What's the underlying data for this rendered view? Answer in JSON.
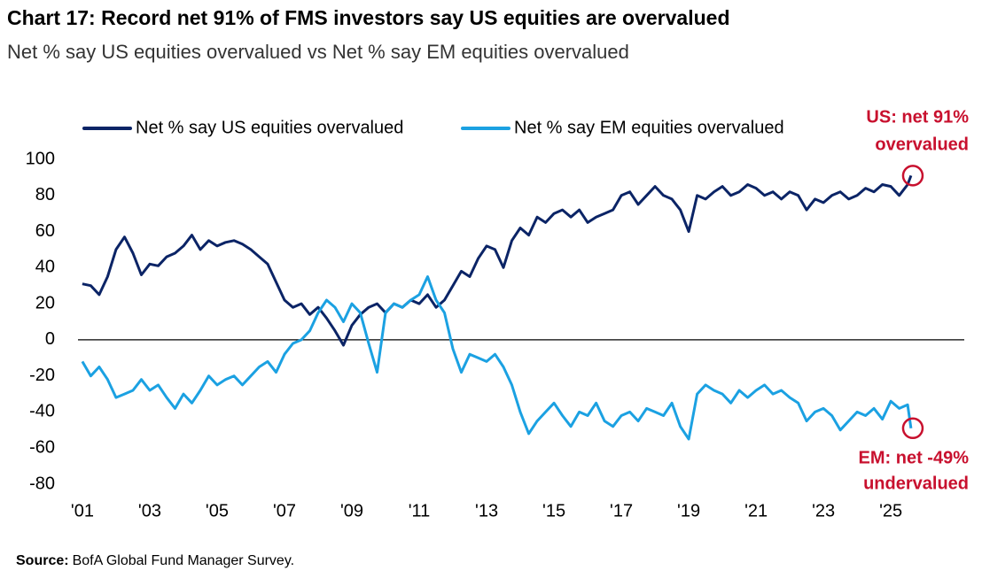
{
  "chart_data": {
    "type": "line",
    "title": "Chart 17: Record net 91% of FMS investors say US equities are overvalued",
    "subtitle": "Net % say US equities overvalued vs Net % say EM equities overvalued",
    "x": [
      2001,
      2001.25,
      2001.5,
      2001.75,
      2002,
      2002.25,
      2002.5,
      2002.75,
      2003,
      2003.25,
      2003.5,
      2003.75,
      2004,
      2004.25,
      2004.5,
      2004.75,
      2005,
      2005.25,
      2005.5,
      2005.75,
      2006,
      2006.25,
      2006.5,
      2006.75,
      2007,
      2007.25,
      2007.5,
      2007.75,
      2008,
      2008.25,
      2008.5,
      2008.75,
      2009,
      2009.25,
      2009.5,
      2009.75,
      2010,
      2010.25,
      2010.5,
      2010.75,
      2011,
      2011.25,
      2011.5,
      2011.75,
      2012,
      2012.25,
      2012.5,
      2012.75,
      2013,
      2013.25,
      2013.5,
      2013.75,
      2014,
      2014.25,
      2014.5,
      2014.75,
      2015,
      2015.25,
      2015.5,
      2015.75,
      2016,
      2016.25,
      2016.5,
      2016.75,
      2017,
      2017.25,
      2017.5,
      2017.75,
      2018,
      2018.25,
      2018.5,
      2018.75,
      2019,
      2019.25,
      2019.5,
      2019.75,
      2020,
      2020.25,
      2020.5,
      2020.75,
      2021,
      2021.25,
      2021.5,
      2021.75,
      2022,
      2022.25,
      2022.5,
      2022.75,
      2023,
      2023.25,
      2023.5,
      2023.75,
      2024,
      2024.25,
      2024.5,
      2024.75,
      2025,
      2025.25,
      2025.5,
      2025.6
    ],
    "series": [
      {
        "name": "Net % say US equities overvalued",
        "color": "#0b2466",
        "values": [
          31,
          30,
          25,
          35,
          50,
          57,
          48,
          36,
          42,
          41,
          46,
          48,
          52,
          58,
          50,
          55,
          52,
          54,
          55,
          53,
          50,
          46,
          42,
          32,
          22,
          18,
          20,
          14,
          18,
          12,
          5,
          -3,
          8,
          14,
          18,
          20,
          15,
          20,
          18,
          22,
          20,
          25,
          18,
          22,
          30,
          38,
          35,
          45,
          52,
          50,
          40,
          55,
          62,
          58,
          68,
          65,
          70,
          72,
          68,
          72,
          65,
          68,
          70,
          72,
          80,
          82,
          75,
          80,
          85,
          80,
          78,
          72,
          60,
          80,
          78,
          82,
          85,
          80,
          82,
          86,
          84,
          80,
          82,
          78,
          82,
          80,
          72,
          78,
          76,
          80,
          82,
          78,
          80,
          84,
          82,
          86,
          85,
          80,
          86,
          91
        ]
      },
      {
        "name": "Net % say EM equities overvalued",
        "color": "#1ba1e2",
        "values": [
          -12,
          -20,
          -15,
          -22,
          -32,
          -30,
          -28,
          -22,
          -28,
          -25,
          -32,
          -38,
          -30,
          -35,
          -28,
          -20,
          -25,
          -22,
          -20,
          -25,
          -20,
          -15,
          -12,
          -18,
          -8,
          -2,
          0,
          5,
          15,
          22,
          18,
          10,
          20,
          15,
          -2,
          -18,
          15,
          20,
          18,
          22,
          25,
          35,
          22,
          15,
          -5,
          -18,
          -8,
          -10,
          -12,
          -8,
          -15,
          -25,
          -40,
          -52,
          -45,
          -40,
          -35,
          -42,
          -48,
          -40,
          -42,
          -35,
          -45,
          -48,
          -42,
          -40,
          -45,
          -38,
          -40,
          -42,
          -35,
          -48,
          -55,
          -30,
          -25,
          -28,
          -30,
          -35,
          -28,
          -32,
          -28,
          -25,
          -30,
          -28,
          -32,
          -35,
          -45,
          -40,
          -38,
          -42,
          -50,
          -45,
          -40,
          -42,
          -38,
          -44,
          -34,
          -38,
          -36,
          -49
        ]
      }
    ],
    "xlim": [
      2000.87,
      2027.18
    ],
    "xticks": [
      {
        "value": 2001,
        "label": "'01"
      },
      {
        "value": 2003,
        "label": "'03"
      },
      {
        "value": 2005,
        "label": "'05"
      },
      {
        "value": 2007,
        "label": "'07"
      },
      {
        "value": 2009,
        "label": "'09"
      },
      {
        "value": 2011,
        "label": "'11"
      },
      {
        "value": 2013,
        "label": "'13"
      },
      {
        "value": 2015,
        "label": "'15"
      },
      {
        "value": 2017,
        "label": "'17"
      },
      {
        "value": 2019,
        "label": "'19"
      },
      {
        "value": 2021,
        "label": "'21"
      },
      {
        "value": 2023,
        "label": "'23"
      },
      {
        "value": 2025,
        "label": "'25"
      }
    ],
    "ylim": [
      -80,
      100
    ],
    "yticks": [
      -80,
      -60,
      -40,
      -20,
      0,
      20,
      40,
      60,
      80,
      100
    ],
    "annotations": [
      {
        "lines": [
          "US: net 91%",
          "overvalued"
        ],
        "color": "#c8102e"
      },
      {
        "lines": [
          "EM: net -49%",
          "undervalued"
        ],
        "color": "#c8102e"
      }
    ],
    "source_label": "Source:",
    "source_text": "BofA Global Fund Manager Survey."
  }
}
